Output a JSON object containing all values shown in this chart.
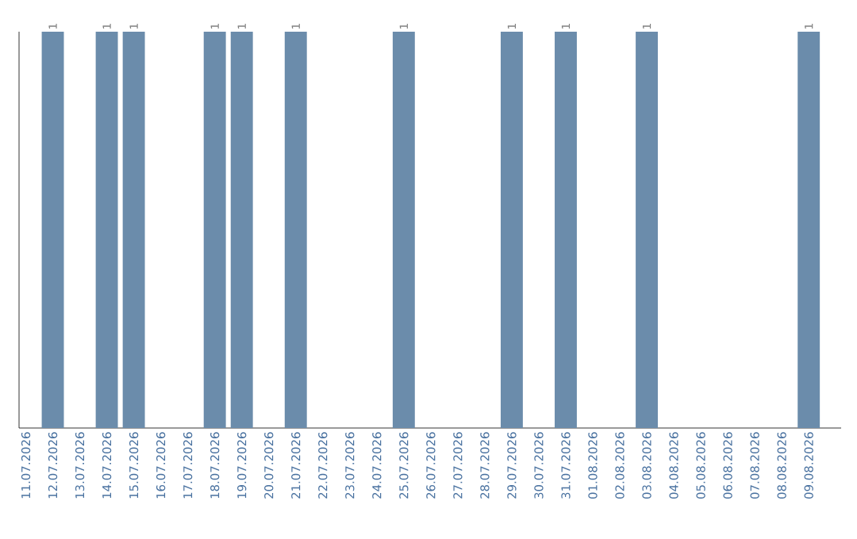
{
  "chart_data": {
    "type": "bar",
    "categories": [
      "11.07.2026",
      "12.07.2026",
      "13.07.2026",
      "14.07.2026",
      "15.07.2026",
      "16.07.2026",
      "17.07.2026",
      "18.07.2026",
      "19.07.2026",
      "20.07.2026",
      "21.07.2026",
      "22.07.2026",
      "23.07.2026",
      "24.07.2026",
      "25.07.2026",
      "26.07.2026",
      "27.07.2026",
      "28.07.2026",
      "29.07.2026",
      "30.07.2026",
      "31.07.2026",
      "01.08.2026",
      "02.08.2026",
      "03.08.2026",
      "04.08.2026",
      "05.08.2026",
      "06.08.2026",
      "07.08.2026",
      "08.08.2026",
      "09.08.2026"
    ],
    "values": [
      null,
      1,
      null,
      1,
      1,
      null,
      null,
      1,
      1,
      null,
      1,
      null,
      null,
      null,
      1,
      null,
      null,
      null,
      1,
      null,
      1,
      null,
      null,
      1,
      null,
      null,
      null,
      null,
      null,
      1
    ],
    "color": "#6b8cab",
    "data_labels": true
  }
}
